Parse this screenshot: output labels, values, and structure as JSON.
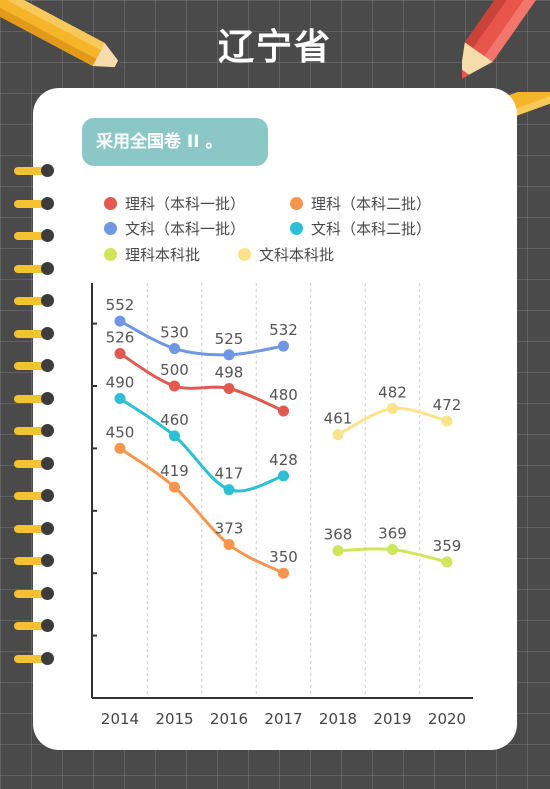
{
  "title": "辽宁省",
  "subtitle": "采用全国卷 II 。",
  "colors": {
    "li_ke_1": "#e05a50",
    "li_ke_2": "#f7954c",
    "wen_ke_1": "#6f97e2",
    "wen_ke_2": "#2cbfd5",
    "li_ke_ben": "#cde65a",
    "wen_ke_ben": "#fbe38e"
  },
  "chart_data": {
    "type": "line",
    "x": [
      "2014",
      "2015",
      "2016",
      "2017",
      "2018",
      "2019",
      "2020"
    ],
    "ylim": [
      250,
      600
    ],
    "yticks": [
      300,
      350,
      400,
      450,
      500,
      550
    ],
    "grid": "vertical dashed",
    "legend_position": "top",
    "series": [
      {
        "key": "li_ke_1",
        "name": "理科（本科一批）",
        "values": [
          526,
          500,
          498,
          480,
          null,
          null,
          null
        ]
      },
      {
        "key": "li_ke_2",
        "name": "理科（本科二批）",
        "values": [
          450,
          419,
          373,
          350,
          null,
          null,
          null
        ]
      },
      {
        "key": "wen_ke_1",
        "name": "文科（本科一批）",
        "values": [
          552,
          530,
          525,
          532,
          null,
          null,
          null
        ]
      },
      {
        "key": "wen_ke_2",
        "name": "文科（本科二批）",
        "values": [
          490,
          460,
          417,
          428,
          null,
          null,
          null
        ]
      },
      {
        "key": "li_ke_ben",
        "name": "理科本科批",
        "values": [
          null,
          null,
          null,
          null,
          368,
          369,
          359
        ]
      },
      {
        "key": "wen_ke_ben",
        "name": "文科本科批",
        "values": [
          null,
          null,
          null,
          null,
          461,
          482,
          472
        ]
      }
    ]
  }
}
